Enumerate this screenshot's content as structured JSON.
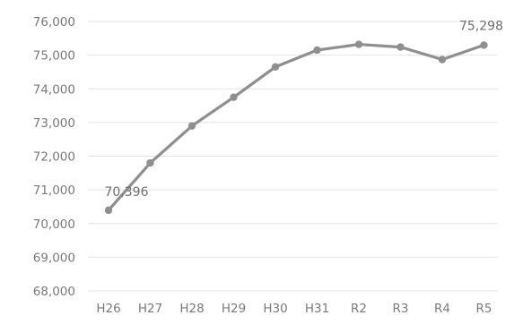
{
  "chart_data": {
    "type": "line",
    "title": "",
    "xlabel": "",
    "ylabel": "",
    "categories": [
      "H26",
      "H27",
      "H28",
      "H29",
      "H30",
      "H31",
      "R2",
      "R3",
      "R4",
      "R5"
    ],
    "series": [
      {
        "values": [
          70396,
          71800,
          72900,
          73750,
          74650,
          75150,
          75320,
          75240,
          74870,
          75298
        ]
      }
    ],
    "ylim": [
      68000,
      76000
    ],
    "ytick_values": [
      68000,
      69000,
      70000,
      71000,
      72000,
      73000,
      74000,
      75000,
      76000
    ],
    "ytick_labels": [
      "68,000",
      "69,000",
      "70,000",
      "71,000",
      "72,000",
      "73,000",
      "74,000",
      "75,000",
      "76,000"
    ],
    "data_labels": [
      {
        "index": 0,
        "text": "70,396"
      },
      {
        "index": 9,
        "text": "75,298"
      }
    ],
    "grid": true,
    "legend": "none",
    "colors": {
      "series": "#8f8f8f",
      "grid": "#e4e4e4",
      "tick_text": "#7a7a7a"
    }
  }
}
